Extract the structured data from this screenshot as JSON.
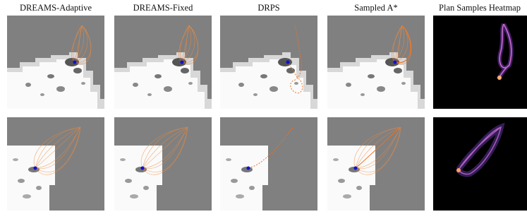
{
  "columns": [
    {
      "title": "DREAMS-Adaptive"
    },
    {
      "title": "DREAMS-Fixed"
    },
    {
      "title": "DRPS"
    },
    {
      "title": "Sampled A*"
    },
    {
      "title": "Plan Samples Heatmap"
    }
  ]
}
